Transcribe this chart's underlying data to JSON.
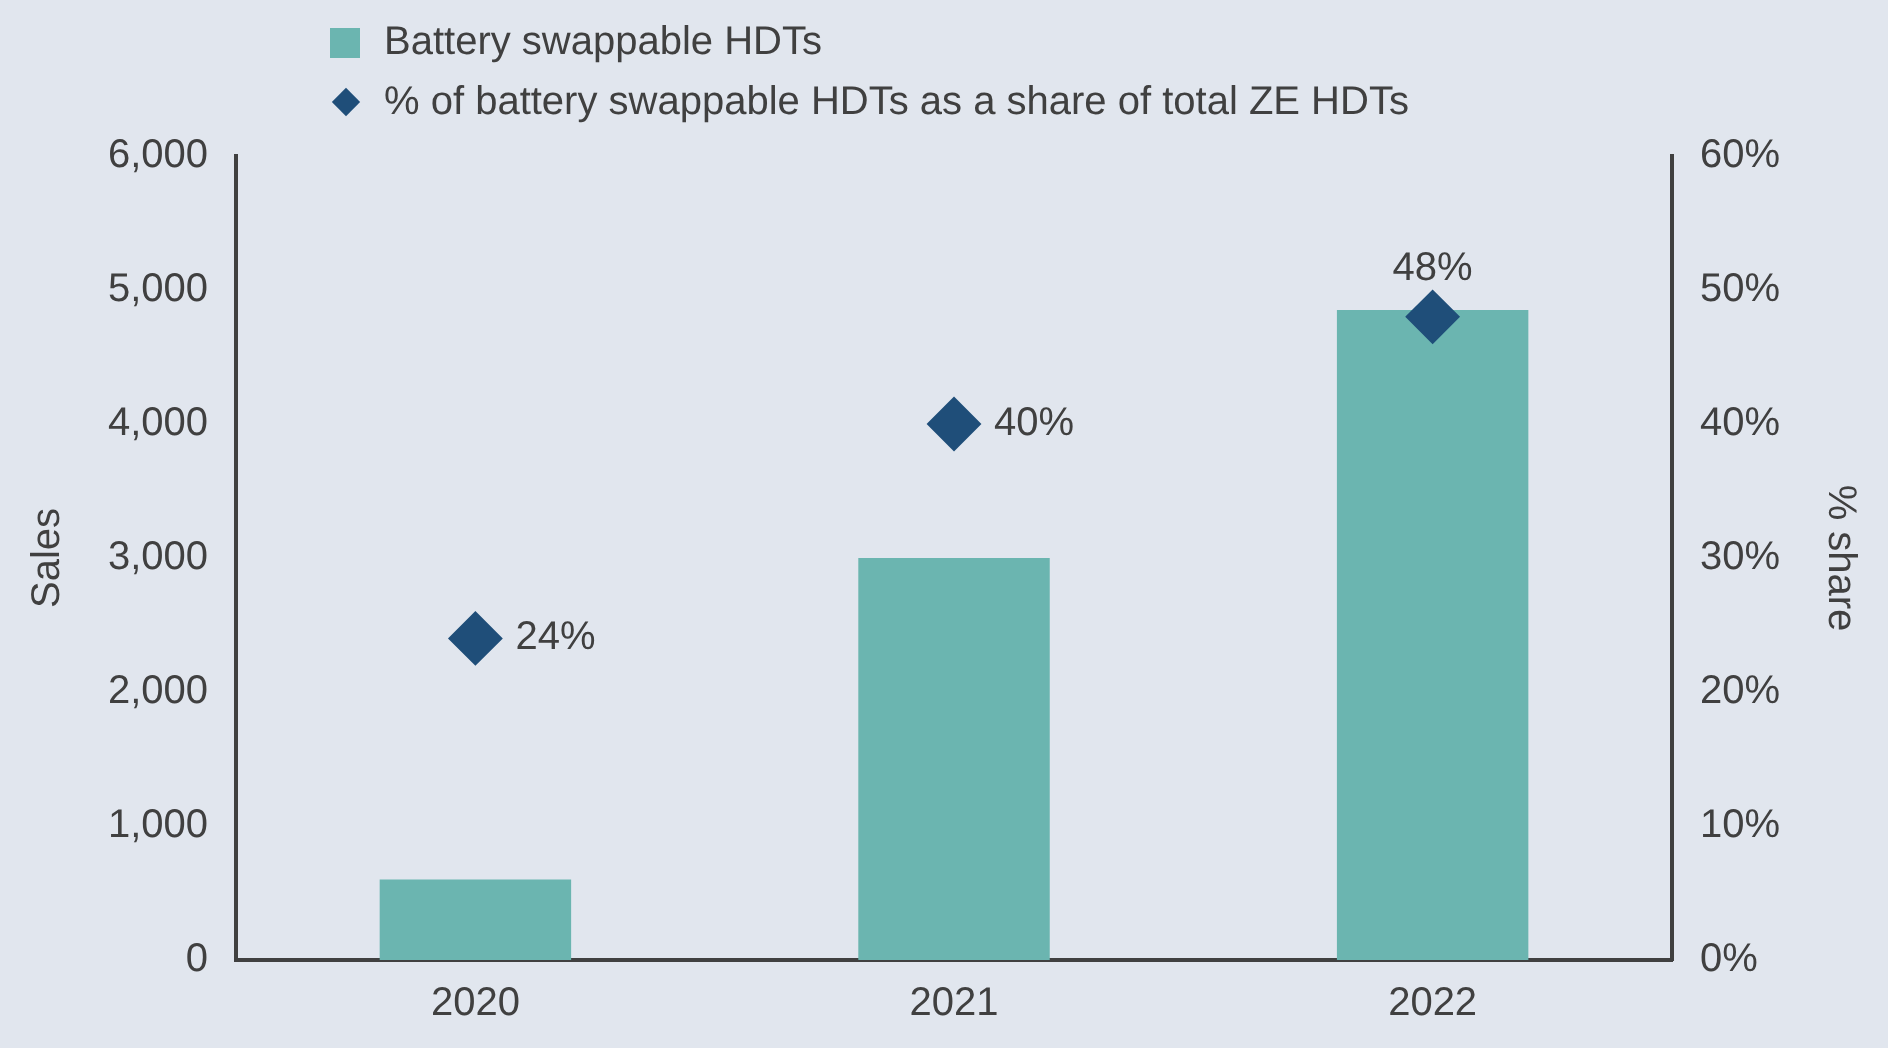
{
  "chart_data": {
    "type": "bar",
    "categories": [
      "2020",
      "2021",
      "2022"
    ],
    "ylabel": "Sales",
    "y2label": "% share",
    "ylim": [
      0,
      6000
    ],
    "yticks": [
      {
        "value": 0,
        "label": "0"
      },
      {
        "value": 1000,
        "label": "1,000"
      },
      {
        "value": 2000,
        "label": "2,000"
      },
      {
        "value": 3000,
        "label": "3,000"
      },
      {
        "value": 4000,
        "label": "4,000"
      },
      {
        "value": 5000,
        "label": "5,000"
      },
      {
        "value": 6000,
        "label": "6,000"
      }
    ],
    "y2lim": [
      0,
      60
    ],
    "y2ticks": [
      {
        "value": 0,
        "label": "0%"
      },
      {
        "value": 10,
        "label": "10%"
      },
      {
        "value": 20,
        "label": "20%"
      },
      {
        "value": 30,
        "label": "30%"
      },
      {
        "value": 40,
        "label": "40%"
      },
      {
        "value": 50,
        "label": "50%"
      },
      {
        "value": 60,
        "label": "60%"
      }
    ],
    "series": [
      {
        "name": "Battery swappable HDTs",
        "color": "#6bb5b0",
        "values": [
          600,
          3000,
          4850
        ]
      },
      {
        "name": "% of battery swappable HDTs as a share of total ZE HDTs",
        "type": "scatter",
        "axis": "y2",
        "marker": "diamond",
        "color": "#1f4e79",
        "values": [
          24,
          40,
          48
        ],
        "value_labels": [
          "24%",
          "40%",
          "48%"
        ]
      }
    ],
    "grid": false,
    "legend": "top left"
  }
}
